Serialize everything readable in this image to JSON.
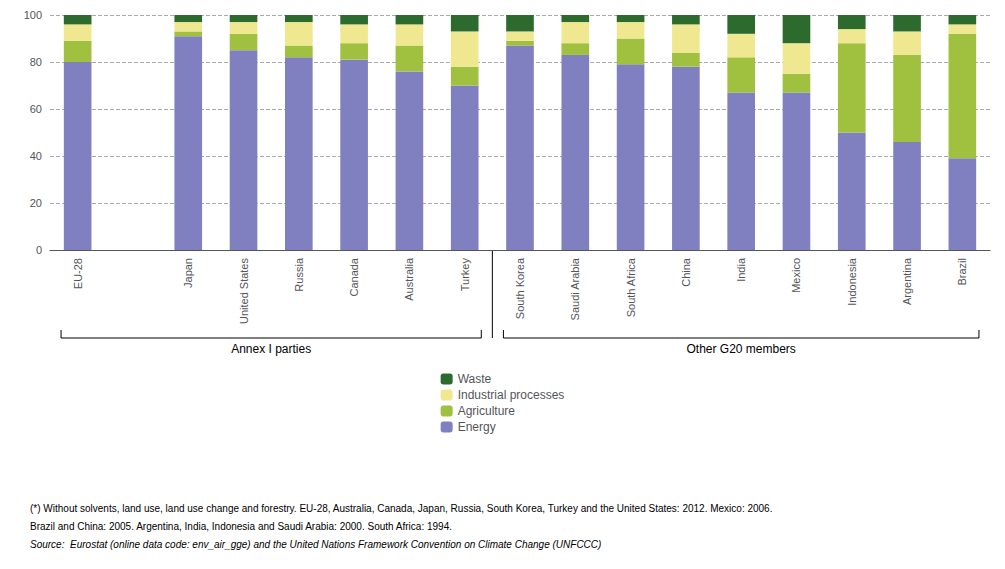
{
  "chart_data": {
    "type": "bar",
    "stacked": true,
    "categories": [
      "EU-28",
      null,
      "Japan",
      "United States",
      "Russia",
      "Canada",
      "Australia",
      "Turkey",
      "South Korea",
      "Saudi Arabia",
      "South Africa",
      "China",
      "India",
      "Mexico",
      "Indonesia",
      "Argentina",
      "Brazil"
    ],
    "series": [
      {
        "name": "Energy",
        "color": "#8080c0",
        "values": [
          80,
          0,
          91,
          85,
          82,
          81,
          76,
          70,
          87,
          83,
          79,
          78,
          67,
          67,
          50,
          46,
          39
        ]
      },
      {
        "name": "Agriculture",
        "color": "#a0c040",
        "values": [
          9,
          0,
          2,
          7,
          5,
          7,
          11,
          8,
          2,
          5,
          11,
          6,
          15,
          8,
          38,
          37,
          53
        ]
      },
      {
        "name": "Industrial processes",
        "color": "#f0e890",
        "values": [
          7,
          0,
          4,
          5,
          10,
          8,
          9,
          15,
          4,
          9,
          7,
          12,
          10,
          13,
          6,
          10,
          4
        ]
      },
      {
        "name": "Waste",
        "color": "#2d6a2d",
        "values": [
          4,
          0,
          3,
          3,
          3,
          4,
          4,
          7,
          7,
          3,
          3,
          4,
          8,
          12,
          6,
          7,
          4
        ]
      }
    ],
    "ylim": [
      0,
      100
    ],
    "yticks": [
      0,
      20,
      40,
      60,
      80,
      100
    ],
    "grid": true,
    "legend": "bottom",
    "annotations": [
      {
        "text": "Annex I parties",
        "start": "EU-28",
        "end": "Turkey"
      },
      {
        "text": "Other G20 members",
        "start": "South Korea",
        "end": "Brazil"
      }
    ],
    "footnotes": [
      "(*) Without solvents, land use, land use change and forestry. EU-28, Australia, Canada, Japan, Russia, South Korea, Turkey and the United States: 2012. Mexico: 2006.",
      "Brazil and China: 2005. Argentina, India, Indonesia and Saudi Arabia: 2000. South Africa: 1994.",
      "Source:  Eurostat (online data code: env_air_gge) and the United Nations Framework Convention on Climate Change (UNFCCC)"
    ]
  }
}
